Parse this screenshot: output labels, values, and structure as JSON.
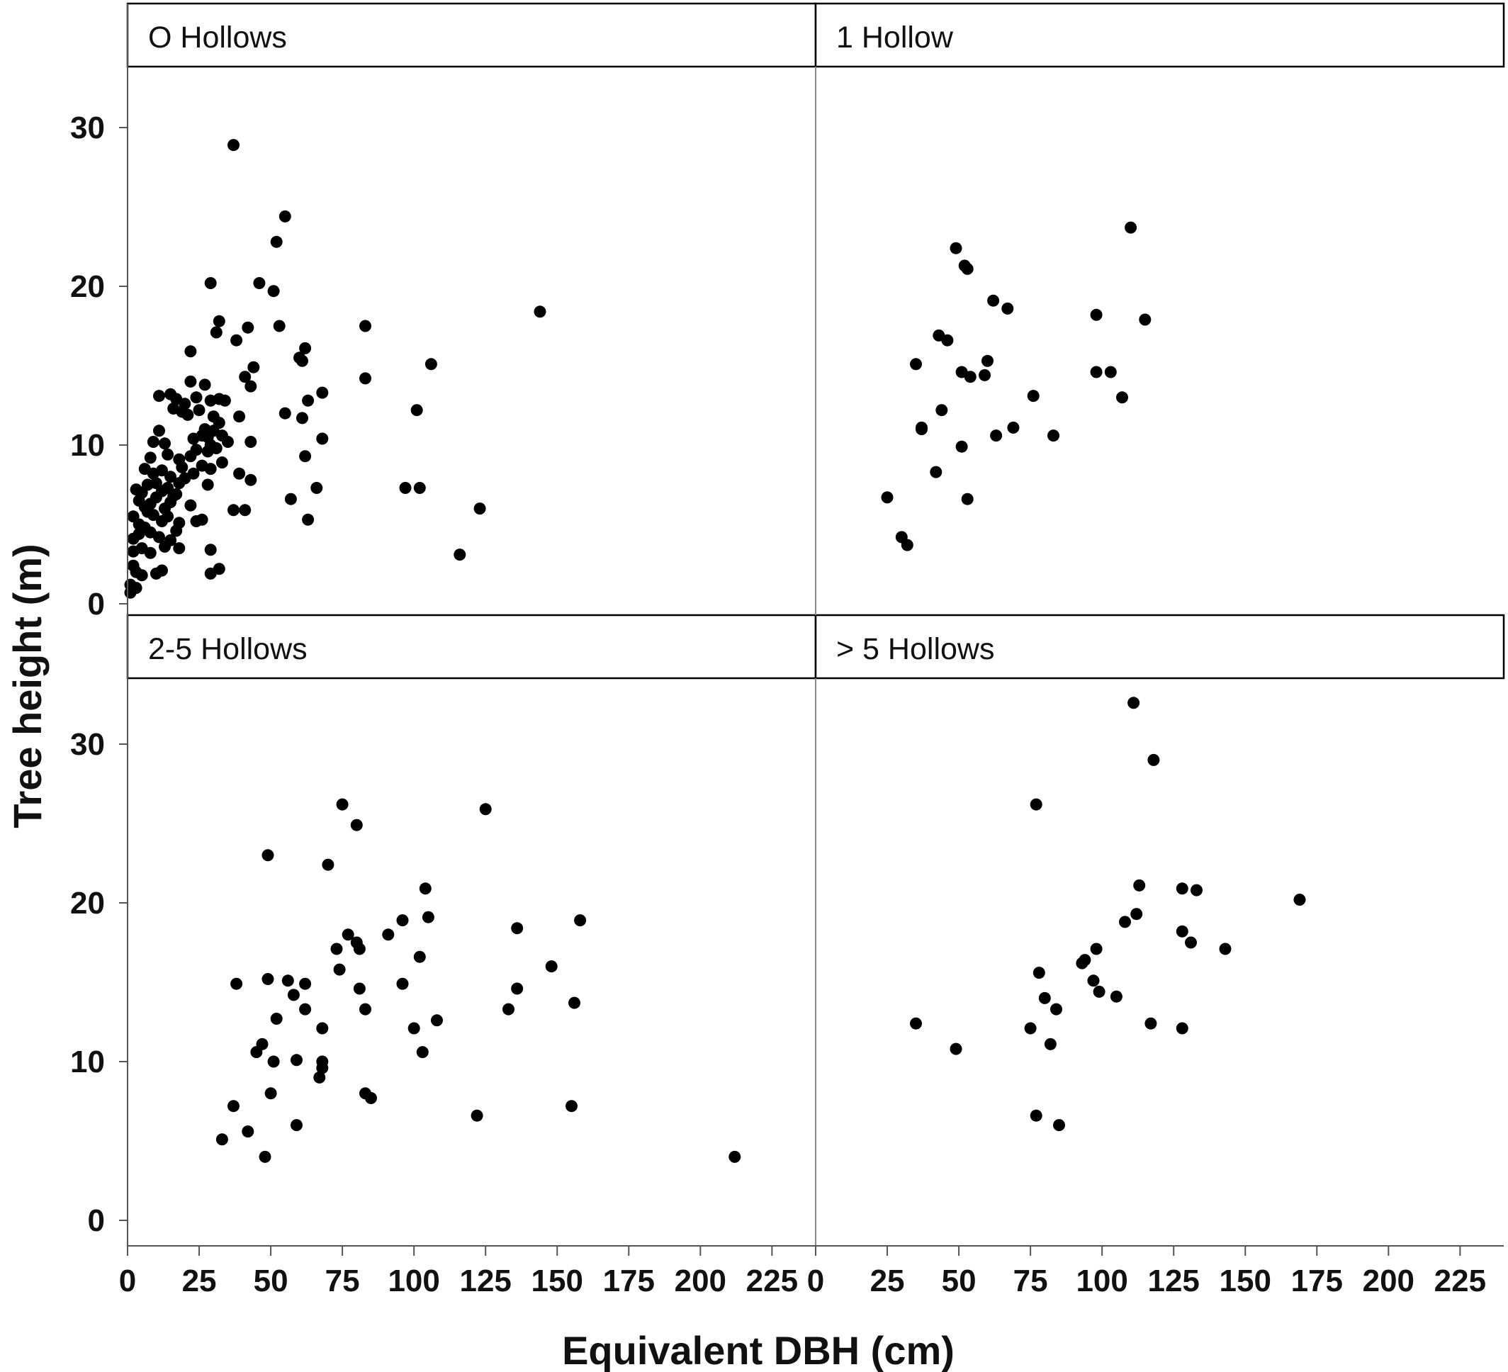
{
  "chart_data": {
    "type": "scatter",
    "xlabel": "Equivalent DBH (cm)",
    "ylabel": "Tree height (m)",
    "xlim": [
      0,
      240
    ],
    "ylim": [
      -1,
      35
    ],
    "xticks": [
      0,
      25,
      50,
      75,
      100,
      125,
      150,
      175,
      200,
      225
    ],
    "yticks": [
      0,
      10,
      20,
      30
    ],
    "grid": false,
    "marker_color": "#000000",
    "panels": [
      {
        "label": "O Hollows",
        "points": [
          [
            37,
            28.9
          ],
          [
            55,
            24.4
          ],
          [
            52,
            22.8
          ],
          [
            29,
            20.2
          ],
          [
            46,
            20.2
          ],
          [
            51,
            19.7
          ],
          [
            144,
            18.4
          ],
          [
            32,
            17.8
          ],
          [
            42,
            17.4
          ],
          [
            53,
            17.5
          ],
          [
            83,
            17.5
          ],
          [
            31,
            17.1
          ],
          [
            38,
            16.6
          ],
          [
            22,
            15.9
          ],
          [
            62,
            16.1
          ],
          [
            60,
            15.5
          ],
          [
            61,
            15.3
          ],
          [
            106,
            15.1
          ],
          [
            44,
            14.9
          ],
          [
            41,
            14.3
          ],
          [
            43,
            13.7
          ],
          [
            83,
            14.2
          ],
          [
            22,
            14.0
          ],
          [
            27,
            13.8
          ],
          [
            15,
            13.2
          ],
          [
            11,
            13.1
          ],
          [
            17,
            12.9
          ],
          [
            24,
            13.0
          ],
          [
            20,
            12.6
          ],
          [
            29,
            12.8
          ],
          [
            34,
            12.8
          ],
          [
            32,
            12.9
          ],
          [
            63,
            12.8
          ],
          [
            68,
            13.3
          ],
          [
            16,
            12.3
          ],
          [
            19,
            12.1
          ],
          [
            21,
            11.9
          ],
          [
            25,
            12.2
          ],
          [
            55,
            12.0
          ],
          [
            61,
            11.7
          ],
          [
            101,
            12.2
          ],
          [
            39,
            11.8
          ],
          [
            30,
            11.8
          ],
          [
            32,
            11.4
          ],
          [
            11,
            10.9
          ],
          [
            9,
            10.2
          ],
          [
            13,
            10.1
          ],
          [
            23,
            10.4
          ],
          [
            26,
            10.6
          ],
          [
            27,
            11.0
          ],
          [
            28,
            10.5
          ],
          [
            30,
            10.9
          ],
          [
            33,
            10.6
          ],
          [
            35,
            10.2
          ],
          [
            43,
            10.2
          ],
          [
            68,
            10.4
          ],
          [
            8,
            9.2
          ],
          [
            14,
            9.4
          ],
          [
            18,
            9.1
          ],
          [
            22,
            9.3
          ],
          [
            24,
            9.7
          ],
          [
            28,
            9.6
          ],
          [
            29,
            10.0
          ],
          [
            31,
            9.8
          ],
          [
            62,
            9.3
          ],
          [
            6,
            8.5
          ],
          [
            9,
            8.2
          ],
          [
            12,
            8.4
          ],
          [
            15,
            8.0
          ],
          [
            19,
            8.6
          ],
          [
            23,
            8.2
          ],
          [
            26,
            8.7
          ],
          [
            29,
            8.5
          ],
          [
            33,
            8.9
          ],
          [
            39,
            8.2
          ],
          [
            43,
            7.8
          ],
          [
            3,
            7.2
          ],
          [
            5,
            7.0
          ],
          [
            7,
            7.5
          ],
          [
            10,
            7.6
          ],
          [
            12,
            7.1
          ],
          [
            14,
            7.3
          ],
          [
            16,
            6.8
          ],
          [
            18,
            7.6
          ],
          [
            20,
            7.9
          ],
          [
            28,
            7.5
          ],
          [
            66,
            7.3
          ],
          [
            97,
            7.3
          ],
          [
            102,
            7.3
          ],
          [
            4,
            6.5
          ],
          [
            6,
            6.1
          ],
          [
            8,
            6.3
          ],
          [
            10,
            6.7
          ],
          [
            13,
            6.0
          ],
          [
            15,
            6.4
          ],
          [
            17,
            6.9
          ],
          [
            22,
            6.2
          ],
          [
            57,
            6.6
          ],
          [
            123,
            6.0
          ],
          [
            2,
            5.5
          ],
          [
            4,
            5.0
          ],
          [
            7,
            5.8
          ],
          [
            9,
            5.6
          ],
          [
            12,
            5.2
          ],
          [
            14,
            5.5
          ],
          [
            18,
            5.1
          ],
          [
            24,
            5.2
          ],
          [
            26,
            5.3
          ],
          [
            37,
            5.9
          ],
          [
            41,
            5.9
          ],
          [
            63,
            5.3
          ],
          [
            2,
            4.1
          ],
          [
            4,
            4.4
          ],
          [
            6,
            4.8
          ],
          [
            8,
            4.5
          ],
          [
            11,
            4.2
          ],
          [
            15,
            4.0
          ],
          [
            17,
            4.6
          ],
          [
            2,
            3.3
          ],
          [
            5,
            3.5
          ],
          [
            8,
            3.2
          ],
          [
            13,
            3.6
          ],
          [
            18,
            3.5
          ],
          [
            29,
            3.4
          ],
          [
            116,
            3.1
          ],
          [
            2,
            2.4
          ],
          [
            3,
            2.0
          ],
          [
            5,
            1.8
          ],
          [
            10,
            1.9
          ],
          [
            12,
            2.1
          ],
          [
            29,
            1.9
          ],
          [
            32,
            2.2
          ],
          [
            1,
            1.2
          ],
          [
            3,
            1.0
          ],
          [
            1,
            0.7
          ]
        ]
      },
      {
        "label": "1 Hollow",
        "points": [
          [
            110,
            23.7
          ],
          [
            49,
            22.4
          ],
          [
            52,
            21.3
          ],
          [
            53,
            21.1
          ],
          [
            62,
            19.1
          ],
          [
            67,
            18.6
          ],
          [
            98,
            18.2
          ],
          [
            115,
            17.9
          ],
          [
            43,
            16.9
          ],
          [
            46,
            16.6
          ],
          [
            35,
            15.1
          ],
          [
            60,
            15.3
          ],
          [
            51,
            14.6
          ],
          [
            98,
            14.6
          ],
          [
            103,
            14.6
          ],
          [
            54,
            14.3
          ],
          [
            59,
            14.4
          ],
          [
            76,
            13.1
          ],
          [
            107,
            13.0
          ],
          [
            44,
            12.2
          ],
          [
            37,
            11.1
          ],
          [
            37,
            11.0
          ],
          [
            69,
            11.1
          ],
          [
            63,
            10.6
          ],
          [
            83,
            10.6
          ],
          [
            51,
            9.9
          ],
          [
            42,
            8.3
          ],
          [
            25,
            6.7
          ],
          [
            53,
            6.6
          ],
          [
            30,
            4.2
          ],
          [
            32,
            3.7
          ]
        ]
      },
      {
        "label": "2-5 Hollows",
        "points": [
          [
            75,
            26.2
          ],
          [
            125,
            25.9
          ],
          [
            80,
            24.9
          ],
          [
            49,
            23.0
          ],
          [
            70,
            22.4
          ],
          [
            104,
            20.9
          ],
          [
            105,
            19.1
          ],
          [
            96,
            18.9
          ],
          [
            158,
            18.9
          ],
          [
            136,
            18.4
          ],
          [
            91,
            18.0
          ],
          [
            77,
            18.0
          ],
          [
            80,
            17.5
          ],
          [
            81,
            17.1
          ],
          [
            73,
            17.1
          ],
          [
            102,
            16.6
          ],
          [
            148,
            16.0
          ],
          [
            74,
            15.8
          ],
          [
            49,
            15.2
          ],
          [
            56,
            15.1
          ],
          [
            38,
            14.9
          ],
          [
            62,
            14.9
          ],
          [
            96,
            14.9
          ],
          [
            81,
            14.6
          ],
          [
            136,
            14.6
          ],
          [
            58,
            14.2
          ],
          [
            156,
            13.7
          ],
          [
            62,
            13.3
          ],
          [
            83,
            13.3
          ],
          [
            133,
            13.3
          ],
          [
            52,
            12.7
          ],
          [
            108,
            12.6
          ],
          [
            68,
            12.1
          ],
          [
            100,
            12.1
          ],
          [
            47,
            11.1
          ],
          [
            45,
            10.6
          ],
          [
            103,
            10.6
          ],
          [
            51,
            10.0
          ],
          [
            59,
            10.1
          ],
          [
            68,
            10.0
          ],
          [
            68,
            9.6
          ],
          [
            67,
            9.0
          ],
          [
            50,
            8.0
          ],
          [
            83,
            8.0
          ],
          [
            85,
            7.7
          ],
          [
            37,
            7.2
          ],
          [
            155,
            7.2
          ],
          [
            122,
            6.6
          ],
          [
            59,
            6.0
          ],
          [
            42,
            5.6
          ],
          [
            33,
            5.1
          ],
          [
            48,
            4.0
          ],
          [
            212,
            4.0
          ]
        ]
      },
      {
        "label": "> 5 Hollows",
        "points": [
          [
            111,
            32.6
          ],
          [
            118,
            29.0
          ],
          [
            77,
            26.2
          ],
          [
            113,
            21.1
          ],
          [
            128,
            20.9
          ],
          [
            133,
            20.8
          ],
          [
            169,
            20.2
          ],
          [
            112,
            19.3
          ],
          [
            108,
            18.8
          ],
          [
            128,
            18.2
          ],
          [
            131,
            17.5
          ],
          [
            98,
            17.1
          ],
          [
            143,
            17.1
          ],
          [
            94,
            16.4
          ],
          [
            93,
            16.2
          ],
          [
            78,
            15.6
          ],
          [
            97,
            15.1
          ],
          [
            99,
            14.4
          ],
          [
            105,
            14.1
          ],
          [
            80,
            14.0
          ],
          [
            84,
            13.3
          ],
          [
            35,
            12.4
          ],
          [
            117,
            12.4
          ],
          [
            75,
            12.1
          ],
          [
            128,
            12.1
          ],
          [
            82,
            11.1
          ],
          [
            49,
            10.8
          ],
          [
            77,
            6.6
          ],
          [
            85,
            6.0
          ]
        ]
      }
    ]
  }
}
